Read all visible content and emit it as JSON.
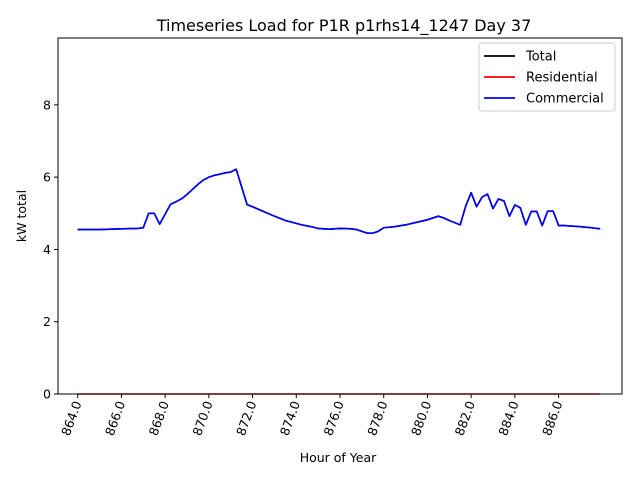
{
  "chart_data": {
    "type": "line",
    "title": "Timeseries Load for P1R p1rhs14_1247  Day 37",
    "xlabel": "Hour of Year",
    "ylabel": "kW total",
    "xlim": [
      863.1,
      888.9
    ],
    "ylim": [
      0,
      9.85
    ],
    "xticks": [
      864,
      866,
      868,
      870,
      872,
      874,
      876,
      878,
      880,
      882,
      884,
      886
    ],
    "xtick_labels": [
      "864.0",
      "866.0",
      "868.0",
      "870.0",
      "872.0",
      "874.0",
      "876.0",
      "878.0",
      "880.0",
      "882.0",
      "884.0",
      "886.0"
    ],
    "yticks": [
      0,
      2,
      4,
      6,
      8
    ],
    "ytick_labels": [
      "0",
      "2",
      "4",
      "6",
      "8"
    ],
    "grid": false,
    "legend_position": "top-right",
    "series": [
      {
        "name": "Total",
        "color": "#000000",
        "x": [
          864.0,
          864.5,
          865.0,
          866.0,
          866.75,
          867.0,
          867.25,
          867.5,
          867.75,
          868.25,
          868.5,
          868.75,
          869.0,
          869.25,
          869.5,
          869.75,
          870.0,
          870.25,
          870.5,
          870.75,
          871.0,
          871.25,
          871.75,
          872.0,
          872.5,
          873.0,
          873.5,
          874.0,
          874.25,
          874.5,
          874.75,
          875.0,
          875.5,
          876.0,
          876.5,
          876.75,
          877.0,
          877.25,
          877.5,
          877.75,
          878.0,
          878.5,
          879.0,
          879.5,
          880.0,
          880.5,
          880.75,
          881.0,
          881.25,
          881.5,
          881.75,
          882.0,
          882.25,
          882.5,
          882.75,
          883.0,
          883.25,
          883.5,
          883.75,
          884.0,
          884.25,
          884.5,
          884.75,
          885.0,
          885.25,
          885.5,
          885.75,
          886.0,
          886.25,
          886.5,
          887.0,
          887.5,
          887.9
        ],
        "values": [
          4.55,
          4.55,
          4.55,
          4.57,
          4.58,
          4.6,
          5.0,
          5.0,
          4.7,
          5.25,
          5.32,
          5.4,
          5.52,
          5.66,
          5.8,
          5.92,
          6.0,
          6.05,
          6.08,
          6.12,
          6.14,
          6.22,
          5.24,
          5.18,
          5.05,
          4.92,
          4.8,
          4.72,
          4.68,
          4.65,
          4.62,
          4.58,
          4.56,
          4.58,
          4.57,
          4.55,
          4.5,
          4.45,
          4.45,
          4.5,
          4.6,
          4.63,
          4.68,
          4.75,
          4.82,
          4.92,
          4.87,
          4.8,
          4.74,
          4.68,
          5.2,
          5.57,
          5.18,
          5.45,
          5.53,
          5.13,
          5.4,
          5.34,
          4.92,
          5.23,
          5.15,
          4.68,
          5.05,
          5.05,
          4.66,
          5.06,
          5.06,
          4.66,
          4.66,
          4.65,
          4.63,
          4.6,
          4.57
        ]
      },
      {
        "name": "Residential",
        "color": "#ff0000",
        "x": [
          864.0,
          887.9
        ],
        "values": [
          0.0,
          0.0
        ]
      },
      {
        "name": "Commercial",
        "color": "#0000ff",
        "x": [
          864.0,
          864.5,
          865.0,
          866.0,
          866.75,
          867.0,
          867.25,
          867.5,
          867.75,
          868.25,
          868.5,
          868.75,
          869.0,
          869.25,
          869.5,
          869.75,
          870.0,
          870.25,
          870.5,
          870.75,
          871.0,
          871.25,
          871.75,
          872.0,
          872.5,
          873.0,
          873.5,
          874.0,
          874.25,
          874.5,
          874.75,
          875.0,
          875.5,
          876.0,
          876.5,
          876.75,
          877.0,
          877.25,
          877.5,
          877.75,
          878.0,
          878.5,
          879.0,
          879.5,
          880.0,
          880.5,
          880.75,
          881.0,
          881.25,
          881.5,
          881.75,
          882.0,
          882.25,
          882.5,
          882.75,
          883.0,
          883.25,
          883.5,
          883.75,
          884.0,
          884.25,
          884.5,
          884.75,
          885.0,
          885.25,
          885.5,
          885.75,
          886.0,
          886.25,
          886.5,
          887.0,
          887.5,
          887.9
        ],
        "values": [
          4.55,
          4.55,
          4.55,
          4.57,
          4.58,
          4.6,
          5.0,
          5.0,
          4.7,
          5.25,
          5.32,
          5.4,
          5.52,
          5.66,
          5.8,
          5.92,
          6.0,
          6.05,
          6.08,
          6.12,
          6.14,
          6.22,
          5.24,
          5.18,
          5.05,
          4.92,
          4.8,
          4.72,
          4.68,
          4.65,
          4.62,
          4.58,
          4.56,
          4.58,
          4.57,
          4.55,
          4.5,
          4.45,
          4.45,
          4.5,
          4.6,
          4.63,
          4.68,
          4.75,
          4.82,
          4.92,
          4.87,
          4.8,
          4.74,
          4.68,
          5.2,
          5.57,
          5.18,
          5.45,
          5.53,
          5.13,
          5.4,
          5.34,
          4.92,
          5.23,
          5.15,
          4.68,
          5.05,
          5.05,
          4.66,
          5.06,
          5.06,
          4.66,
          4.66,
          4.65,
          4.63,
          4.6,
          4.57
        ]
      }
    ]
  }
}
